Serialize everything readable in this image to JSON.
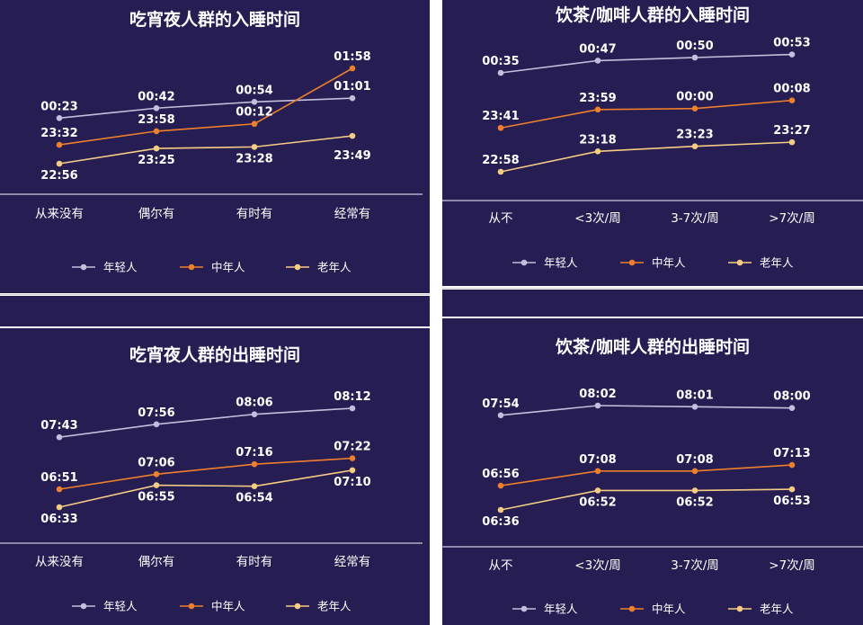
{
  "legend_names": [
    "年轻人",
    "中年人",
    "老年人"
  ],
  "colors": {
    "background": "#261d52",
    "young": "#c4bedc",
    "middle": "#ee7f2d",
    "old": "#f5cc84",
    "text": "#ffffff",
    "divider": "#cfc9e0"
  },
  "chart_data": [
    {
      "type": "line",
      "title": "吃宵夜人群的入睡时间",
      "categories": [
        "从来没有",
        "偶尔有",
        "有时有",
        "经常有"
      ],
      "series": [
        {
          "name": "年轻人",
          "values": [
            "00:23",
            "00:42",
            "00:54",
            "01:01"
          ]
        },
        {
          "name": "中年人",
          "values": [
            "23:32",
            "23:58",
            "00:12",
            "01:58"
          ]
        },
        {
          "name": "老年人",
          "values": [
            "22:56",
            "23:25",
            "23:28",
            "23:49"
          ]
        }
      ],
      "legend": "bottom"
    },
    {
      "type": "line",
      "title": "饮茶/咖啡人群的入睡时间",
      "categories": [
        "从不",
        "<3次/周",
        "3-7次/周",
        ">7次/周"
      ],
      "series": [
        {
          "name": "年轻人",
          "values": [
            "00:35",
            "00:47",
            "00:50",
            "00:53"
          ]
        },
        {
          "name": "中年人",
          "values": [
            "23:41",
            "23:59",
            "00:00",
            "00:08"
          ]
        },
        {
          "name": "老年人",
          "values": [
            "22:58",
            "23:18",
            "23:23",
            "23:27"
          ]
        }
      ],
      "legend": "bottom"
    },
    {
      "type": "line",
      "title": "吃宵夜人群的出睡时间",
      "categories": [
        "从来没有",
        "偶尔有",
        "有时有",
        "经常有"
      ],
      "series": [
        {
          "name": "年轻人",
          "values": [
            "07:43",
            "07:56",
            "08:06",
            "08:12"
          ]
        },
        {
          "name": "中年人",
          "values": [
            "06:51",
            "07:06",
            "07:16",
            "07:22"
          ]
        },
        {
          "name": "老年人",
          "values": [
            "06:33",
            "06:55",
            "06:54",
            "07:10"
          ]
        }
      ],
      "legend": "bottom"
    },
    {
      "type": "line",
      "title": "饮茶/咖啡人群的出睡时间",
      "categories": [
        "从不",
        "<3次/周",
        "3-7次/周",
        ">7次/周"
      ],
      "series": [
        {
          "name": "年轻人",
          "values": [
            "07:54",
            "08:02",
            "08:01",
            "08:00"
          ]
        },
        {
          "name": "中年人",
          "values": [
            "06:56",
            "07:08",
            "07:08",
            "07:13"
          ]
        },
        {
          "name": "老年人",
          "values": [
            "06:36",
            "06:52",
            "06:52",
            "06:53"
          ]
        }
      ],
      "legend": "bottom"
    }
  ]
}
